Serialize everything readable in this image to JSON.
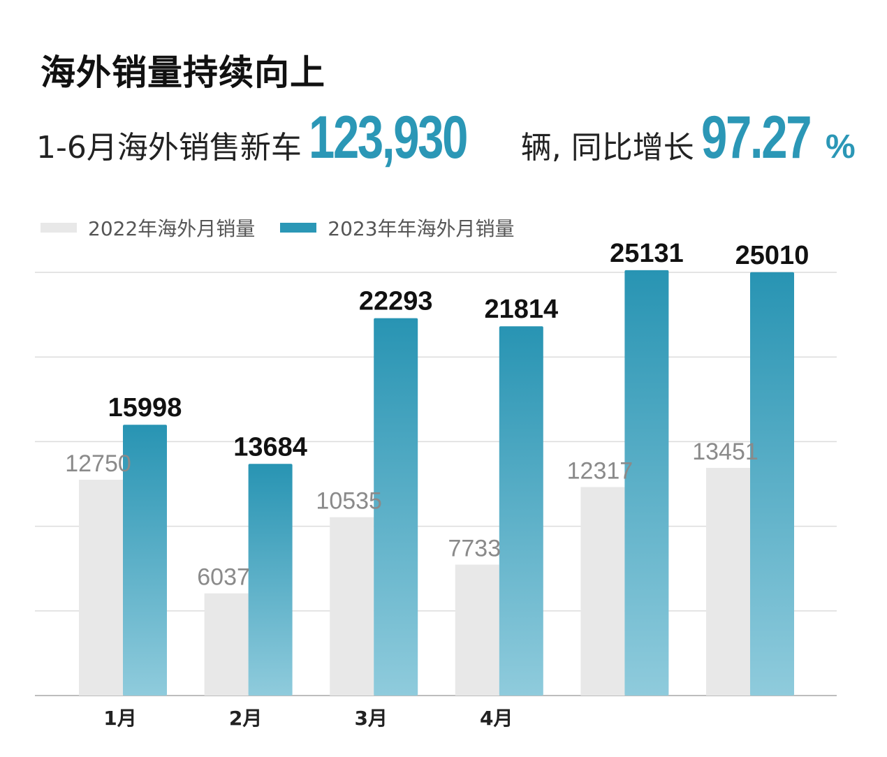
{
  "header": {
    "title": "海外销量持续向上",
    "subtitle_prefix": "1-6月海外销售新车",
    "total_value": "123,930",
    "subtitle_mid": "辆, 同比增长",
    "growth_value": "97.27",
    "growth_unit": "%"
  },
  "colors": {
    "accent": "#2b97b6",
    "bar_2022": "#e8e8e8",
    "bar_2023_top": "#2894b3",
    "bar_2023_bottom": "#8fcbdc"
  },
  "chart_data": {
    "type": "bar",
    "categories": [
      "1月",
      "2月",
      "3月",
      "4月",
      "",
      ""
    ],
    "series": [
      {
        "name": "2022年海外月销量",
        "values": [
          12750,
          6037,
          10535,
          7733,
          12317,
          13451
        ]
      },
      {
        "name": "2023年年海外月销量",
        "values": [
          15998,
          13684,
          22293,
          21814,
          25131,
          25010
        ]
      }
    ],
    "ylim": [
      0,
      25000
    ],
    "grid": true,
    "legend": "top-left"
  }
}
